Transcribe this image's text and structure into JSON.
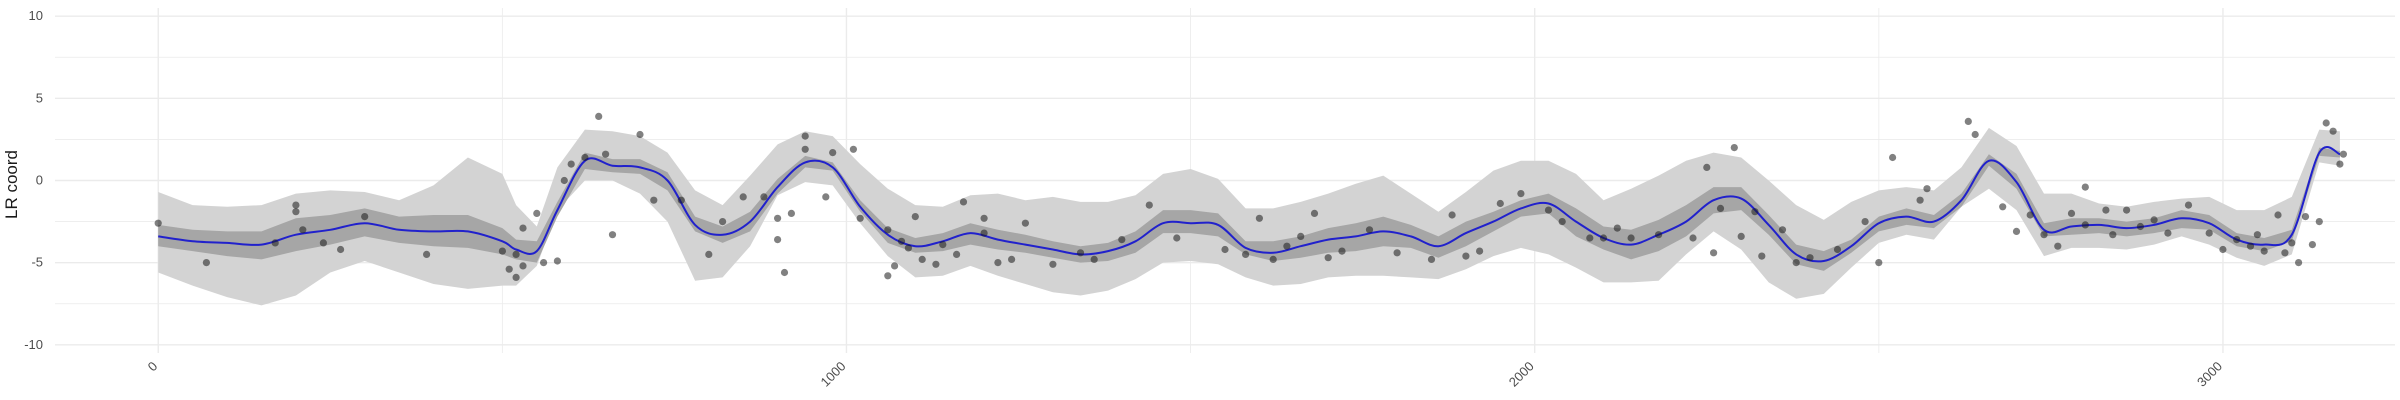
{
  "chart_data": {
    "type": "scatter",
    "title": "",
    "xlabel": "",
    "ylabel": "LR coord",
    "xlim": [
      -150,
      3250
    ],
    "ylim": [
      -10.5,
      10.5
    ],
    "x_ticks": [
      0,
      1000,
      2000,
      3000
    ],
    "x_minor_ticks": [
      500,
      1500,
      2500
    ],
    "y_ticks": [
      -10,
      -5,
      0,
      5,
      10
    ],
    "y_minor_ticks": [
      -7.5,
      -2.5,
      2.5,
      7.5
    ],
    "grid": true,
    "x_tick_rotation": -45,
    "colors": {
      "points": "#1a1a1a",
      "fit_line": "#2121cc",
      "inner_band": "#a6a6a6",
      "outer_band": "#d3d3d3",
      "grid": "#ebebeb"
    },
    "series": [
      {
        "type": "band-outer",
        "x": [
          0,
          50,
          100,
          150,
          200,
          250,
          300,
          350,
          400,
          450,
          500,
          520,
          550,
          580,
          620,
          660,
          700,
          740,
          780,
          820,
          860,
          900,
          940,
          980,
          1020,
          1060,
          1100,
          1140,
          1180,
          1220,
          1260,
          1300,
          1340,
          1380,
          1420,
          1460,
          1500,
          1540,
          1580,
          1620,
          1660,
          1700,
          1740,
          1780,
          1820,
          1860,
          1900,
          1940,
          1980,
          2020,
          2060,
          2100,
          2140,
          2180,
          2220,
          2260,
          2300,
          2340,
          2380,
          2420,
          2460,
          2500,
          2540,
          2580,
          2620,
          2660,
          2700,
          2740,
          2780,
          2820,
          2860,
          2900,
          2940,
          2980,
          3020,
          3060,
          3100,
          3140,
          3170
        ],
        "upper": [
          -0.7,
          -1.5,
          -1.6,
          -1.5,
          -0.8,
          -0.6,
          -0.7,
          -1.2,
          -0.3,
          1.4,
          0.4,
          -1.5,
          -2.8,
          0.8,
          3.1,
          3.0,
          2.7,
          1.7,
          -0.6,
          -1.5,
          0.3,
          2.2,
          3.0,
          2.7,
          1.0,
          -0.5,
          -1.5,
          -1.6,
          -0.9,
          -0.8,
          -1.2,
          -1.0,
          -1.3,
          -1.3,
          -0.9,
          0.4,
          0.7,
          0.1,
          -1.7,
          -1.7,
          -1.3,
          -0.8,
          -0.2,
          0.3,
          -0.8,
          -1.9,
          -0.7,
          0.6,
          1.2,
          1.2,
          0.4,
          -1.2,
          -0.5,
          0.3,
          1.2,
          1.7,
          1.4,
          0.0,
          -1.5,
          -2.4,
          -1.3,
          -0.6,
          -0.4,
          -0.6,
          0.8,
          3.2,
          2.1,
          -0.8,
          -0.8,
          -1.4,
          -1.6,
          -1.3,
          -1.1,
          -1.0,
          -1.8,
          -1.8,
          -1.0,
          3.1,
          3.0
        ],
        "lower": [
          -5.6,
          -6.4,
          -7.1,
          -7.6,
          -7.0,
          -5.6,
          -4.9,
          -5.6,
          -6.3,
          -6.6,
          -6.4,
          -6.4,
          -5.2,
          -1.8,
          0.0,
          0.0,
          -0.8,
          -2.5,
          -6.1,
          -5.9,
          -4.0,
          -0.9,
          -0.1,
          -0.3,
          -2.6,
          -4.6,
          -5.9,
          -5.8,
          -5.2,
          -5.8,
          -6.3,
          -6.8,
          -7.0,
          -6.7,
          -6.0,
          -5.0,
          -4.9,
          -5.1,
          -5.9,
          -6.4,
          -6.3,
          -5.9,
          -5.8,
          -5.8,
          -5.9,
          -6.0,
          -5.4,
          -4.6,
          -4.1,
          -4.5,
          -5.3,
          -6.2,
          -6.2,
          -6.1,
          -4.5,
          -3.1,
          -4.2,
          -6.2,
          -7.2,
          -6.9,
          -5.3,
          -3.8,
          -3.3,
          -3.6,
          -1.6,
          -0.5,
          -1.8,
          -4.6,
          -4.1,
          -4.1,
          -4.2,
          -3.9,
          -3.4,
          -3.9,
          -4.7,
          -5.2,
          -4.5,
          1.1,
          0.9
        ]
      },
      {
        "type": "band-inner",
        "x": [
          0,
          50,
          100,
          150,
          200,
          250,
          300,
          350,
          400,
          450,
          500,
          520,
          550,
          580,
          620,
          660,
          700,
          740,
          780,
          820,
          860,
          900,
          940,
          980,
          1020,
          1060,
          1100,
          1140,
          1180,
          1220,
          1260,
          1300,
          1340,
          1380,
          1420,
          1460,
          1500,
          1540,
          1580,
          1620,
          1660,
          1700,
          1740,
          1780,
          1820,
          1860,
          1900,
          1940,
          1980,
          2020,
          2060,
          2100,
          2140,
          2180,
          2220,
          2260,
          2300,
          2340,
          2380,
          2420,
          2460,
          2500,
          2540,
          2580,
          2620,
          2660,
          2700,
          2740,
          2780,
          2820,
          2860,
          2900,
          2940,
          2980,
          3020,
          3060,
          3100,
          3140,
          3170
        ],
        "upper": [
          -2.7,
          -3.0,
          -3.1,
          -3.1,
          -2.3,
          -2.1,
          -1.7,
          -2.2,
          -2.1,
          -2.1,
          -2.9,
          -3.6,
          -3.7,
          -1.3,
          1.7,
          1.3,
          1.3,
          0.5,
          -2.2,
          -2.8,
          -1.9,
          0.1,
          1.5,
          1.1,
          -1.2,
          -2.9,
          -3.5,
          -3.2,
          -2.6,
          -3.0,
          -3.3,
          -3.7,
          -4.0,
          -3.8,
          -3.1,
          -1.8,
          -1.8,
          -2.0,
          -3.7,
          -3.7,
          -3.4,
          -2.9,
          -2.6,
          -2.2,
          -2.7,
          -3.4,
          -2.5,
          -1.9,
          -1.2,
          -0.8,
          -1.7,
          -2.8,
          -3.0,
          -2.4,
          -1.5,
          -0.4,
          -0.4,
          -2.1,
          -3.9,
          -4.3,
          -3.6,
          -2.2,
          -1.7,
          -2.1,
          -0.8,
          1.6,
          0.4,
          -2.6,
          -2.3,
          -2.3,
          -2.5,
          -2.3,
          -1.8,
          -2.1,
          -3.2,
          -3.5,
          -3.0,
          2.0,
          1.8
        ],
        "lower": [
          -4.0,
          -4.3,
          -4.6,
          -4.8,
          -4.3,
          -3.9,
          -3.4,
          -3.8,
          -4.0,
          -4.1,
          -4.5,
          -4.8,
          -5.0,
          -2.2,
          0.7,
          0.5,
          0.4,
          -0.6,
          -3.1,
          -3.8,
          -3.1,
          -0.8,
          0.8,
          0.6,
          -1.9,
          -3.8,
          -4.4,
          -4.3,
          -3.9,
          -4.2,
          -4.4,
          -4.7,
          -5.0,
          -4.9,
          -4.4,
          -3.2,
          -3.2,
          -3.4,
          -4.5,
          -4.9,
          -4.7,
          -4.4,
          -4.3,
          -4.0,
          -4.1,
          -4.7,
          -4.0,
          -3.1,
          -2.2,
          -2.0,
          -3.4,
          -4.2,
          -4.8,
          -4.3,
          -3.4,
          -2.0,
          -1.8,
          -3.3,
          -5.1,
          -5.5,
          -4.4,
          -3.1,
          -2.7,
          -2.9,
          -1.6,
          0.9,
          -0.5,
          -3.4,
          -3.3,
          -3.2,
          -3.4,
          -3.2,
          -2.9,
          -3.0,
          -4.0,
          -4.3,
          -3.7,
          1.5,
          1.4
        ]
      },
      {
        "type": "line",
        "x": [
          0,
          50,
          100,
          150,
          200,
          250,
          300,
          350,
          400,
          450,
          500,
          520,
          550,
          580,
          620,
          660,
          700,
          740,
          780,
          820,
          860,
          900,
          940,
          980,
          1020,
          1060,
          1100,
          1140,
          1180,
          1220,
          1260,
          1300,
          1340,
          1380,
          1420,
          1460,
          1500,
          1540,
          1580,
          1620,
          1660,
          1700,
          1740,
          1780,
          1820,
          1860,
          1900,
          1940,
          1980,
          2020,
          2060,
          2100,
          2140,
          2180,
          2220,
          2260,
          2300,
          2340,
          2380,
          2420,
          2460,
          2500,
          2540,
          2580,
          2620,
          2660,
          2700,
          2740,
          2780,
          2820,
          2860,
          2900,
          2940,
          2980,
          3020,
          3060,
          3100,
          3140,
          3170
        ],
        "y": [
          -3.4,
          -3.7,
          -3.8,
          -3.9,
          -3.3,
          -3.0,
          -2.6,
          -3.0,
          -3.1,
          -3.1,
          -3.7,
          -4.2,
          -4.3,
          -1.8,
          1.2,
          0.9,
          0.8,
          0.0,
          -2.7,
          -3.3,
          -2.5,
          -0.4,
          1.1,
          0.8,
          -1.6,
          -3.3,
          -4.0,
          -3.7,
          -3.2,
          -3.6,
          -3.9,
          -4.2,
          -4.5,
          -4.3,
          -3.7,
          -2.6,
          -2.6,
          -2.7,
          -4.1,
          -4.4,
          -4.0,
          -3.6,
          -3.4,
          -3.1,
          -3.4,
          -4.0,
          -3.2,
          -2.5,
          -1.7,
          -1.4,
          -2.5,
          -3.5,
          -3.9,
          -3.3,
          -2.5,
          -1.2,
          -1.1,
          -2.7,
          -4.5,
          -4.9,
          -4.0,
          -2.6,
          -2.2,
          -2.5,
          -1.2,
          1.2,
          -0.1,
          -3.0,
          -2.8,
          -2.7,
          -2.9,
          -2.7,
          -2.3,
          -2.6,
          -3.6,
          -3.9,
          -3.3,
          1.7,
          1.6
        ]
      },
      {
        "type": "points",
        "points": [
          [
            0,
            -2.6
          ],
          [
            70,
            -5.0
          ],
          [
            170,
            -3.8
          ],
          [
            200,
            -1.5
          ],
          [
            200,
            -1.9
          ],
          [
            210,
            -3.0
          ],
          [
            240,
            -3.8
          ],
          [
            265,
            -4.2
          ],
          [
            300,
            -2.2
          ],
          [
            390,
            -4.5
          ],
          [
            500,
            -4.3
          ],
          [
            510,
            -5.4
          ],
          [
            520,
            -5.9
          ],
          [
            530,
            -5.2
          ],
          [
            520,
            -4.5
          ],
          [
            530,
            -2.9
          ],
          [
            550,
            -2.0
          ],
          [
            560,
            -5.0
          ],
          [
            580,
            -4.9
          ],
          [
            590,
            0.0
          ],
          [
            600,
            1.0
          ],
          [
            620,
            1.4
          ],
          [
            640,
            3.9
          ],
          [
            650,
            1.6
          ],
          [
            660,
            -3.3
          ],
          [
            700,
            2.8
          ],
          [
            720,
            -1.2
          ],
          [
            760,
            -1.2
          ],
          [
            800,
            -4.5
          ],
          [
            820,
            -2.5
          ],
          [
            850,
            -1.0
          ],
          [
            880,
            -1.0
          ],
          [
            900,
            -3.6
          ],
          [
            910,
            -5.6
          ],
          [
            900,
            -2.3
          ],
          [
            920,
            -2.0
          ],
          [
            940,
            2.7
          ],
          [
            940,
            1.9
          ],
          [
            970,
            -1.0
          ],
          [
            980,
            1.7
          ],
          [
            1010,
            1.9
          ],
          [
            1020,
            -2.3
          ],
          [
            1060,
            -5.8
          ],
          [
            1060,
            -3.0
          ],
          [
            1070,
            -5.2
          ],
          [
            1080,
            -3.7
          ],
          [
            1090,
            -4.1
          ],
          [
            1100,
            -2.2
          ],
          [
            1110,
            -4.8
          ],
          [
            1130,
            -5.1
          ],
          [
            1140,
            -3.9
          ],
          [
            1160,
            -4.5
          ],
          [
            1170,
            -1.3
          ],
          [
            1200,
            -2.3
          ],
          [
            1200,
            -3.2
          ],
          [
            1220,
            -5.0
          ],
          [
            1240,
            -4.8
          ],
          [
            1260,
            -2.6
          ],
          [
            1300,
            -5.1
          ],
          [
            1340,
            -4.4
          ],
          [
            1360,
            -4.8
          ],
          [
            1400,
            -3.6
          ],
          [
            1440,
            -1.5
          ],
          [
            1480,
            -3.5
          ],
          [
            1550,
            -4.2
          ],
          [
            1580,
            -4.5
          ],
          [
            1600,
            -2.3
          ],
          [
            1620,
            -4.8
          ],
          [
            1640,
            -4.0
          ],
          [
            1660,
            -3.4
          ],
          [
            1680,
            -2.0
          ],
          [
            1700,
            -4.7
          ],
          [
            1720,
            -4.3
          ],
          [
            1760,
            -3.0
          ],
          [
            1800,
            -4.4
          ],
          [
            1850,
            -4.8
          ],
          [
            1880,
            -2.1
          ],
          [
            1900,
            -4.6
          ],
          [
            1920,
            -4.3
          ],
          [
            1950,
            -1.4
          ],
          [
            1980,
            -0.8
          ],
          [
            2020,
            -1.8
          ],
          [
            2040,
            -2.5
          ],
          [
            2080,
            -3.5
          ],
          [
            2100,
            -3.5
          ],
          [
            2120,
            -2.9
          ],
          [
            2140,
            -3.5
          ],
          [
            2180,
            -3.3
          ],
          [
            2230,
            -3.5
          ],
          [
            2250,
            0.8
          ],
          [
            2260,
            -4.4
          ],
          [
            2270,
            -1.7
          ],
          [
            2290,
            2.0
          ],
          [
            2300,
            -3.4
          ],
          [
            2320,
            -1.9
          ],
          [
            2330,
            -4.6
          ],
          [
            2360,
            -3.0
          ],
          [
            2380,
            -5.0
          ],
          [
            2400,
            -4.7
          ],
          [
            2440,
            -4.2
          ],
          [
            2480,
            -2.5
          ],
          [
            2500,
            -5.0
          ],
          [
            2520,
            1.4
          ],
          [
            2560,
            -1.2
          ],
          [
            2570,
            -0.5
          ],
          [
            2630,
            3.6
          ],
          [
            2640,
            2.8
          ],
          [
            2680,
            -1.6
          ],
          [
            2700,
            -3.1
          ],
          [
            2720,
            -2.1
          ],
          [
            2740,
            -3.3
          ],
          [
            2760,
            -4.0
          ],
          [
            2780,
            -2.0
          ],
          [
            2800,
            -0.4
          ],
          [
            2800,
            -2.7
          ],
          [
            2830,
            -1.8
          ],
          [
            2840,
            -3.3
          ],
          [
            2860,
            -1.8
          ],
          [
            2880,
            -2.8
          ],
          [
            2900,
            -2.4
          ],
          [
            2920,
            -3.2
          ],
          [
            2950,
            -1.5
          ],
          [
            2980,
            -3.2
          ],
          [
            3000,
            -4.2
          ],
          [
            3020,
            -3.6
          ],
          [
            3040,
            -4.0
          ],
          [
            3050,
            -3.3
          ],
          [
            3060,
            -4.3
          ],
          [
            3080,
            -2.1
          ],
          [
            3090,
            -4.4
          ],
          [
            3100,
            -3.8
          ],
          [
            3110,
            -5.0
          ],
          [
            3120,
            -2.2
          ],
          [
            3130,
            -3.9
          ],
          [
            3140,
            -2.5
          ],
          [
            3150,
            3.5
          ],
          [
            3160,
            3.0
          ],
          [
            3170,
            1.0
          ],
          [
            3175,
            1.6
          ]
        ]
      }
    ]
  }
}
